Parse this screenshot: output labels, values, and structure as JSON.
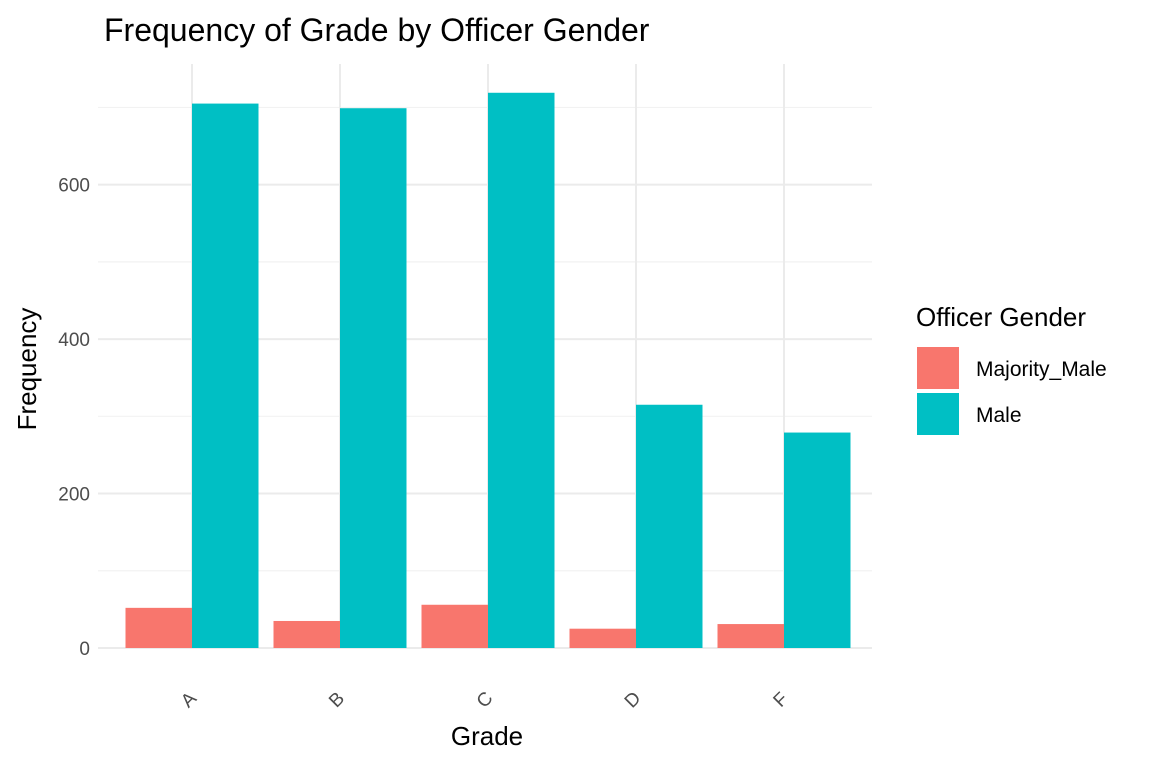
{
  "chart_data": {
    "type": "bar",
    "title": "Frequency of Grade by Officer Gender",
    "xlabel": "Grade",
    "ylabel": "Frequency",
    "categories": [
      "A",
      "B",
      "C",
      "D",
      "F"
    ],
    "series": [
      {
        "name": "Majority_Male",
        "color": "#f8766d",
        "values": [
          52,
          35,
          56,
          25,
          31
        ]
      },
      {
        "name": "Male",
        "color": "#00bfc4",
        "values": [
          705,
          699,
          719,
          315,
          279
        ]
      }
    ],
    "ylim": [
      0,
      720
    ],
    "yticks": [
      0,
      200,
      400,
      600
    ],
    "grid": true,
    "legend": {
      "title": "Officer Gender",
      "position": "right"
    }
  }
}
